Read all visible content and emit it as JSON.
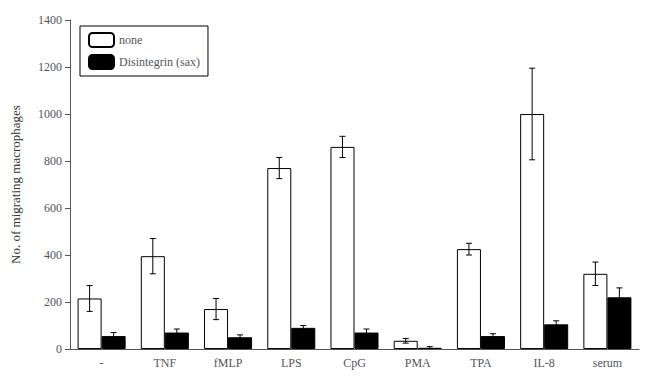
{
  "chart_data": {
    "type": "bar",
    "ylabel": "No. of migrating macrophages",
    "categories": [
      "-",
      "TNF",
      "fMLP",
      "LPS",
      "CpG",
      "PMA",
      "TPA",
      "IL-8",
      "serum"
    ],
    "series": [
      {
        "name": "none",
        "color": "white",
        "values": [
          215,
          395,
          170,
          770,
          860,
          35,
          425,
          1000,
          320
        ],
        "errors": [
          55,
          75,
          45,
          45,
          45,
          10,
          25,
          195,
          50
        ]
      },
      {
        "name": "Disintegrin (sax)",
        "color": "black",
        "values": [
          55,
          70,
          50,
          90,
          70,
          5,
          55,
          105,
          220
        ],
        "errors": [
          15,
          15,
          10,
          10,
          15,
          5,
          10,
          15,
          40
        ]
      }
    ],
    "ylim": [
      0,
      1400
    ],
    "yticks": [
      0,
      200,
      400,
      600,
      800,
      1000,
      1200,
      1400
    ],
    "legend": "upper left",
    "grid": false
  }
}
